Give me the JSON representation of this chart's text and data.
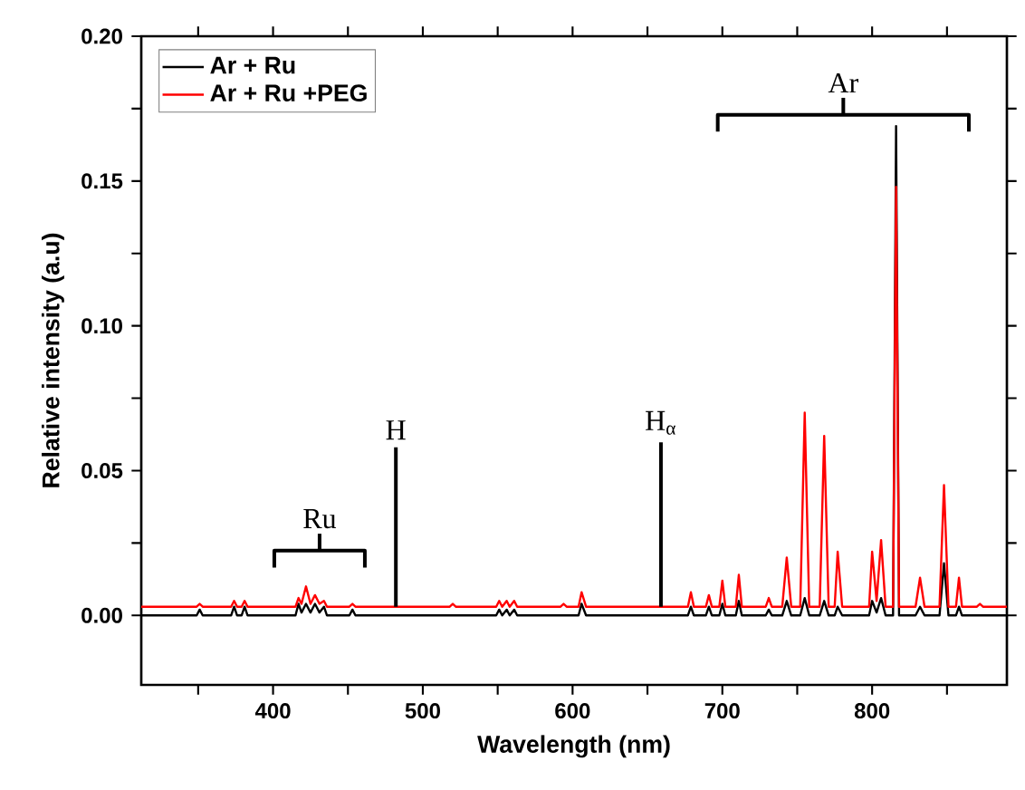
{
  "chart_data": {
    "type": "line",
    "xlabel": "Wavelength (nm)",
    "ylabel": "Relative intensity (a.u)",
    "xlim": [
      312,
      890
    ],
    "ylim": [
      -0.024,
      0.2
    ],
    "xticks": [
      {
        "value": 350,
        "label": null
      },
      400,
      {
        "value": 450,
        "label": null
      },
      500,
      {
        "value": 550,
        "label": null
      },
      600,
      {
        "value": 650,
        "label": null
      },
      700,
      {
        "value": 750,
        "label": null
      },
      800,
      {
        "value": 850,
        "label": null
      }
    ],
    "yticks": [
      {
        "value": 0,
        "label": "0.00"
      },
      {
        "value": 0.025,
        "label": null
      },
      {
        "value": 0.05,
        "label": "0.05"
      },
      {
        "value": 0.075,
        "label": null
      },
      {
        "value": 0.1,
        "label": "0.10"
      },
      {
        "value": 0.125,
        "label": null
      },
      {
        "value": 0.15,
        "label": "0.15"
      },
      {
        "value": 0.175,
        "label": null
      },
      {
        "value": 0.2,
        "label": "0.20"
      }
    ],
    "legend": "top left",
    "grid": false,
    "series": [
      {
        "name": "Ar + Ru",
        "color": "#000000",
        "x": [
          312,
          349,
          351,
          353,
          372,
          374,
          376,
          379,
          381,
          383,
          415,
          417,
          419,
          422,
          425,
          428,
          431,
          434,
          436,
          451,
          453,
          455,
          549,
          551,
          553,
          556,
          558,
          561,
          563,
          604,
          606,
          609,
          677,
          679,
          681,
          689,
          691,
          693,
          698,
          700,
          702,
          709,
          711,
          713,
          729,
          731,
          733,
          740,
          743,
          746,
          752,
          755,
          758,
          765,
          768,
          771,
          775,
          777,
          780,
          798,
          800,
          803,
          806,
          809,
          814,
          816,
          818,
          829,
          832,
          835,
          845,
          848,
          851,
          856,
          858,
          860,
          890
        ],
        "values": [
          0,
          0,
          0.002,
          0,
          0,
          0.003,
          0,
          0,
          0.003,
          0,
          0,
          0.004,
          0.001,
          0.004,
          0.001,
          0.004,
          0.001,
          0.003,
          0,
          0,
          0.002,
          0,
          0,
          0.002,
          0,
          0.002,
          0,
          0.002,
          0,
          0,
          0.004,
          0,
          0,
          0.003,
          0,
          0,
          0.003,
          0,
          0,
          0.004,
          0,
          0,
          0.005,
          0,
          0,
          0.002,
          0,
          0,
          0.005,
          0,
          0,
          0.006,
          0,
          0,
          0.005,
          0,
          0,
          0.003,
          0,
          0,
          0.005,
          0.001,
          0.006,
          0,
          0,
          0.169,
          0,
          0,
          0.003,
          0,
          0,
          0.018,
          0,
          0,
          0.003,
          0,
          0
        ]
      },
      {
        "name": "Ar + Ru +PEG",
        "color": "#ff0000",
        "x": [
          312,
          349,
          351,
          353,
          372,
          374,
          376,
          379,
          381,
          383,
          415,
          417,
          419,
          422,
          425,
          428,
          431,
          434,
          436,
          451,
          453,
          455,
          518,
          520,
          522,
          549,
          551,
          553,
          556,
          558,
          561,
          563,
          592,
          594,
          596,
          604,
          606,
          609,
          677,
          679,
          681,
          689,
          691,
          693,
          698,
          700,
          702,
          709,
          711,
          713,
          729,
          731,
          733,
          740,
          743,
          746,
          752,
          755,
          758,
          765,
          768,
          771,
          775,
          777,
          780,
          798,
          800,
          803,
          806,
          809,
          814,
          816,
          818,
          829,
          832,
          835,
          845,
          848,
          851,
          856,
          858,
          860,
          870,
          872,
          874,
          890
        ],
        "values": [
          0.003,
          0.003,
          0.004,
          0.003,
          0.003,
          0.005,
          0.003,
          0.003,
          0.005,
          0.003,
          0.003,
          0.006,
          0.004,
          0.01,
          0.004,
          0.007,
          0.004,
          0.005,
          0.003,
          0.003,
          0.004,
          0.003,
          0.003,
          0.004,
          0.003,
          0.003,
          0.005,
          0.003,
          0.005,
          0.003,
          0.005,
          0.003,
          0.003,
          0.004,
          0.003,
          0.003,
          0.008,
          0.003,
          0.003,
          0.008,
          0.003,
          0.003,
          0.007,
          0.003,
          0.003,
          0.012,
          0.003,
          0.003,
          0.014,
          0.003,
          0.003,
          0.006,
          0.003,
          0.003,
          0.02,
          0.003,
          0.003,
          0.07,
          0.003,
          0.003,
          0.062,
          0.003,
          0.003,
          0.022,
          0.003,
          0.003,
          0.022,
          0.005,
          0.026,
          0.003,
          0.003,
          0.148,
          0.003,
          0.003,
          0.013,
          0.003,
          0.003,
          0.045,
          0.003,
          0.003,
          0.013,
          0.003,
          0.003,
          0.004,
          0.003,
          0.003
        ]
      }
    ],
    "annotations": [
      "Ru",
      {
        "text": "H",
        "x": 482,
        "y": 0.003
      },
      {
        "text": "H$_{α}$",
        "x": 659,
        "y": 0.003
      },
      "Ar"
    ]
  }
}
